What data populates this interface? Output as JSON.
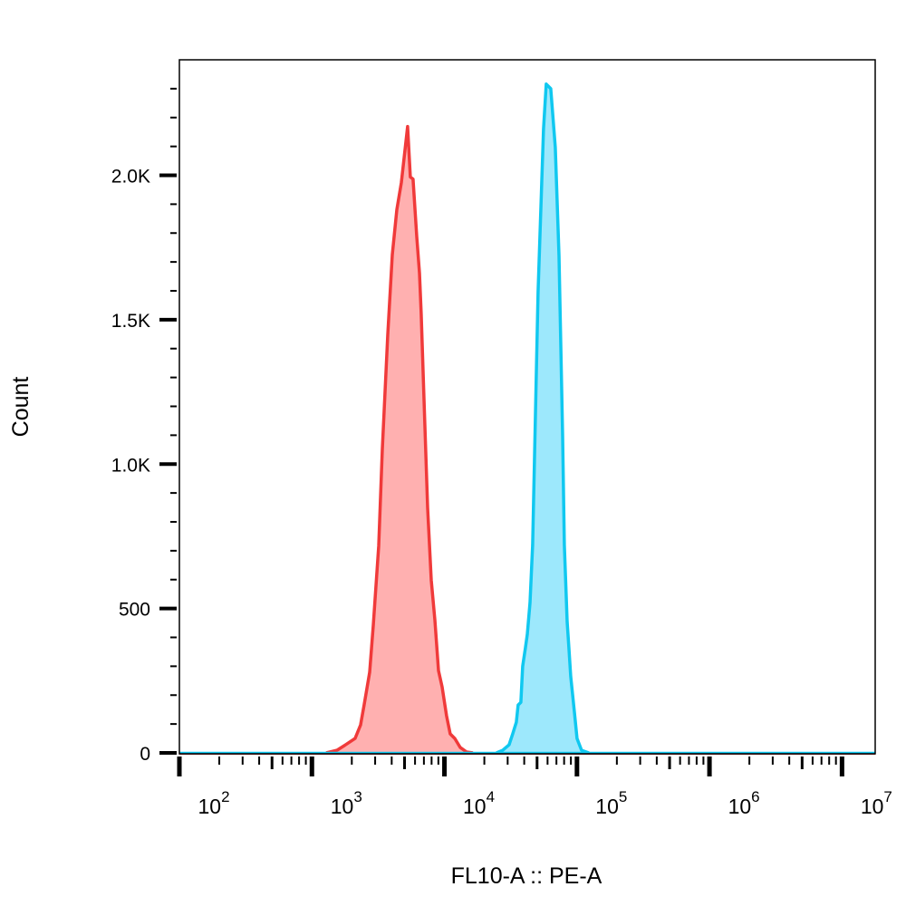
{
  "chart_data": {
    "type": "area",
    "title": "",
    "xlabel": "FL10-A :: PE-A",
    "ylabel": "Count",
    "x_scale": "log",
    "xlim": [
      100,
      17800000
    ],
    "ylim": [
      0,
      2400
    ],
    "grid": false,
    "x_ticks": [
      {
        "value": 100,
        "base": "10",
        "exp": "2"
      },
      {
        "value": 1000,
        "base": "10",
        "exp": "3"
      },
      {
        "value": 10000,
        "base": "10",
        "exp": "4"
      },
      {
        "value": 100000,
        "base": "10",
        "exp": "5"
      },
      {
        "value": 1000000,
        "base": "10",
        "exp": "6"
      },
      {
        "value": 10000000,
        "base": "10",
        "exp": "7"
      }
    ],
    "y_ticks": [
      {
        "value": 0,
        "label": "0"
      },
      {
        "value": 500,
        "label": "500"
      },
      {
        "value": 1000,
        "label": "1.0K"
      },
      {
        "value": 1500,
        "label": "1.5K"
      },
      {
        "value": 2000,
        "label": "2.0K"
      }
    ],
    "series": [
      {
        "line_color": "#f03a3a",
        "fill_color": "#ffb0b0",
        "x": [
          1280,
          1545,
          1754,
          2118,
          2328,
          2479,
          2725,
          2902,
          3190,
          3399,
          3737,
          4041,
          4370,
          4728,
          5277,
          5530,
          5797,
          6180,
          6478,
          6682,
          7010,
          7472,
          7950,
          8467,
          9020,
          9600,
          10380,
          11060,
          11970,
          13150,
          14690,
          16400
        ],
        "y": [
          0,
          9,
          25,
          50,
          97,
          166,
          279,
          441,
          717,
          1052,
          1449,
          1725,
          1881,
          1975,
          2169,
          1994,
          1987,
          1787,
          1662,
          1521,
          1224,
          848,
          598,
          460,
          285,
          228,
          128,
          66,
          50,
          19,
          3,
          0
        ]
      },
      {
        "line_color": "#10c8f0",
        "fill_color": "#9de8fc",
        "x": [
          24660,
          27540,
          30760,
          32760,
          34890,
          35990,
          37730,
          38960,
          40840,
          42160,
          44200,
          46330,
          48570,
          50910,
          53370,
          55940,
          58640,
          63430,
          68630,
          73150,
          77950,
          80350,
          84300,
          86980,
          89740,
          95600,
          100200,
          108400,
          123000
        ],
        "y": [
          0,
          9,
          28,
          66,
          106,
          166,
          175,
          300,
          363,
          410,
          520,
          720,
          1158,
          1596,
          1878,
          2160,
          2316,
          2300,
          2097,
          1722,
          1096,
          720,
          454,
          360,
          266,
          141,
          50,
          9,
          0
        ]
      }
    ]
  }
}
